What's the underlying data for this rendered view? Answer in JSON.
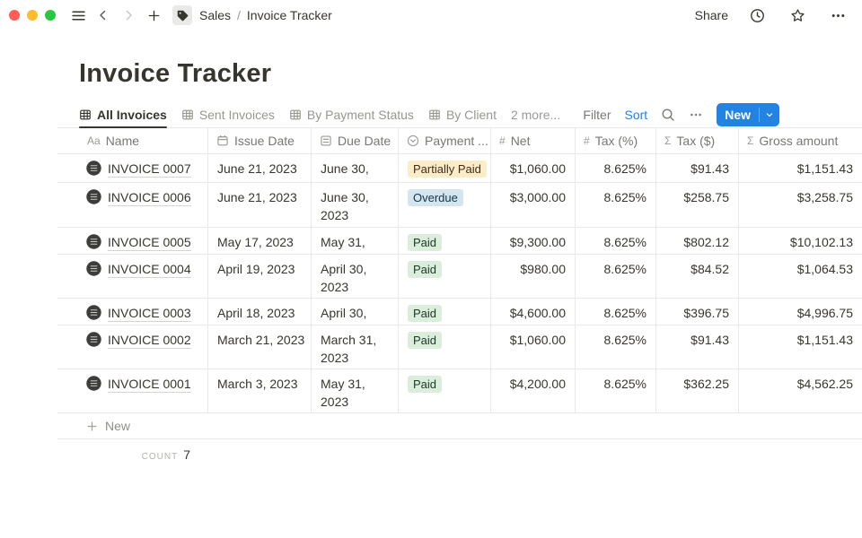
{
  "titlebar": {
    "breadcrumb": {
      "workspace": "Sales",
      "separator": "/",
      "page": "Invoice Tracker"
    },
    "share_label": "Share"
  },
  "page": {
    "title": "Invoice Tracker"
  },
  "views": {
    "tabs": [
      {
        "label": "All Invoices",
        "active": true
      },
      {
        "label": "Sent Invoices",
        "active": false
      },
      {
        "label": "By Payment Status",
        "active": false
      },
      {
        "label": "By Client",
        "active": false
      }
    ],
    "more_label": "2 more...",
    "filter_label": "Filter",
    "sort_label": "Sort",
    "new_button_label": "New"
  },
  "table": {
    "columns": [
      {
        "label": "Name",
        "icon": "text-property-icon",
        "glyph": "Aa"
      },
      {
        "label": "Issue Date",
        "icon": "calendar-icon",
        "glyph": "calendar"
      },
      {
        "label": "Due Date",
        "icon": "date-icon",
        "glyph": "calendar-lines"
      },
      {
        "label": "Payment ...",
        "icon": "select-property-icon",
        "glyph": "circle-chevron"
      },
      {
        "label": "Net",
        "icon": "number-property-icon",
        "glyph": "#"
      },
      {
        "label": "Tax (%)",
        "icon": "number-property-icon",
        "glyph": "#"
      },
      {
        "label": "Tax ($)",
        "icon": "formula-property-icon",
        "glyph": "Σ"
      },
      {
        "label": "Gross amount",
        "icon": "formula-property-icon",
        "glyph": "Σ"
      }
    ],
    "rows": [
      {
        "name": "INVOICE 0007",
        "issue_date": "June 21, 2023",
        "due_date": "June 30, 2023",
        "payment_status": "Partially Paid",
        "status_color": "yellow",
        "net": "$1,060.00",
        "tax_pct": "8.625%",
        "tax_usd": "$91.43",
        "gross": "$1,151.43"
      },
      {
        "name": "INVOICE 0006",
        "issue_date": "June 21, 2023",
        "due_date": "June 30, 2023",
        "payment_status": "Overdue",
        "status_color": "blue",
        "net": "$3,000.00",
        "tax_pct": "8.625%",
        "tax_usd": "$258.75",
        "gross": "$3,258.75"
      },
      {
        "name": "INVOICE 0005",
        "issue_date": "May 17, 2023",
        "due_date": "May 31, 2023",
        "payment_status": "Paid",
        "status_color": "green",
        "net": "$9,300.00",
        "tax_pct": "8.625%",
        "tax_usd": "$802.12",
        "gross": "$10,102.13"
      },
      {
        "name": "INVOICE 0004",
        "issue_date": "April 19, 2023",
        "due_date": "April 30, 2023",
        "payment_status": "Paid",
        "status_color": "green",
        "net": "$980.00",
        "tax_pct": "8.625%",
        "tax_usd": "$84.52",
        "gross": "$1,064.53"
      },
      {
        "name": "INVOICE 0003",
        "issue_date": "April 18, 2023",
        "due_date": "April 30, 2023",
        "payment_status": "Paid",
        "status_color": "green",
        "net": "$4,600.00",
        "tax_pct": "8.625%",
        "tax_usd": "$396.75",
        "gross": "$4,996.75"
      },
      {
        "name": "INVOICE 0002",
        "issue_date": "March 21, 2023",
        "due_date": "March 31, 2023",
        "payment_status": "Paid",
        "status_color": "green",
        "net": "$1,060.00",
        "tax_pct": "8.625%",
        "tax_usd": "$91.43",
        "gross": "$1,151.43"
      },
      {
        "name": "INVOICE 0001",
        "issue_date": "March 3, 2023",
        "due_date": "May 31, 2023",
        "payment_status": "Paid",
        "status_color": "green",
        "net": "$4,200.00",
        "tax_pct": "8.625%",
        "tax_usd": "$362.25",
        "gross": "$4,562.25"
      }
    ],
    "new_row_label": "New",
    "count_label": "COUNT",
    "count_value": "7"
  },
  "icons": {
    "page_icon": "tag",
    "history": "clock",
    "favorite": "star",
    "more": "ellipsis",
    "search": "magnifier",
    "row_icon": "dark-circle-receipt"
  },
  "colors": {
    "accent_blue": "#2383e2",
    "text_dark": "#37352f",
    "text_gray": "#787774",
    "border": "#e9e9e7",
    "badge_yellow_bg": "#fdecc8",
    "badge_yellow_text": "#402c1b",
    "badge_blue_bg": "#d3e5ef",
    "badge_blue_text": "#183347",
    "badge_green_bg": "#dbeddb",
    "badge_green_text": "#1c3829"
  }
}
